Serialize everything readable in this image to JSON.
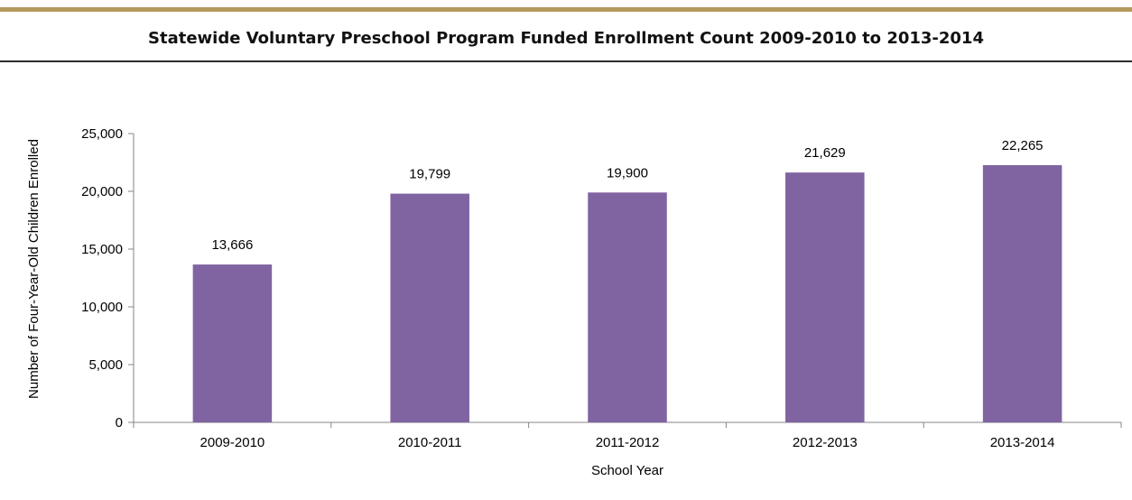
{
  "header": {
    "title": "Statewide Voluntary Preschool Program Funded Enrollment Count 2009-2010 to 2013-2014"
  },
  "chart_data": {
    "type": "bar",
    "categories": [
      "2009-2010",
      "2010-2011",
      "2011-2012",
      "2012-2013",
      "2013-2014"
    ],
    "values": [
      13666,
      19799,
      19900,
      21629,
      22265
    ],
    "data_labels": [
      "13,666",
      "19,799",
      "19,900",
      "21,629",
      "22,265"
    ],
    "title": "Statewide Voluntary Preschool Program Funded Enrollment Count 2009-2010 to 2013-2014",
    "xlabel": "School Year",
    "ylabel": "Number of Four-Year-Old Children Enrolled",
    "ylim": [
      0,
      25000
    ],
    "yticks": [
      0,
      5000,
      10000,
      15000,
      20000,
      25000
    ],
    "ytick_labels": [
      "0",
      "5,000",
      "10,000",
      "15,000",
      "20,000",
      "25,000"
    ],
    "grid": false,
    "legend": "none",
    "bar_color": "#8064a2",
    "accent_color": "#b49a5c"
  }
}
